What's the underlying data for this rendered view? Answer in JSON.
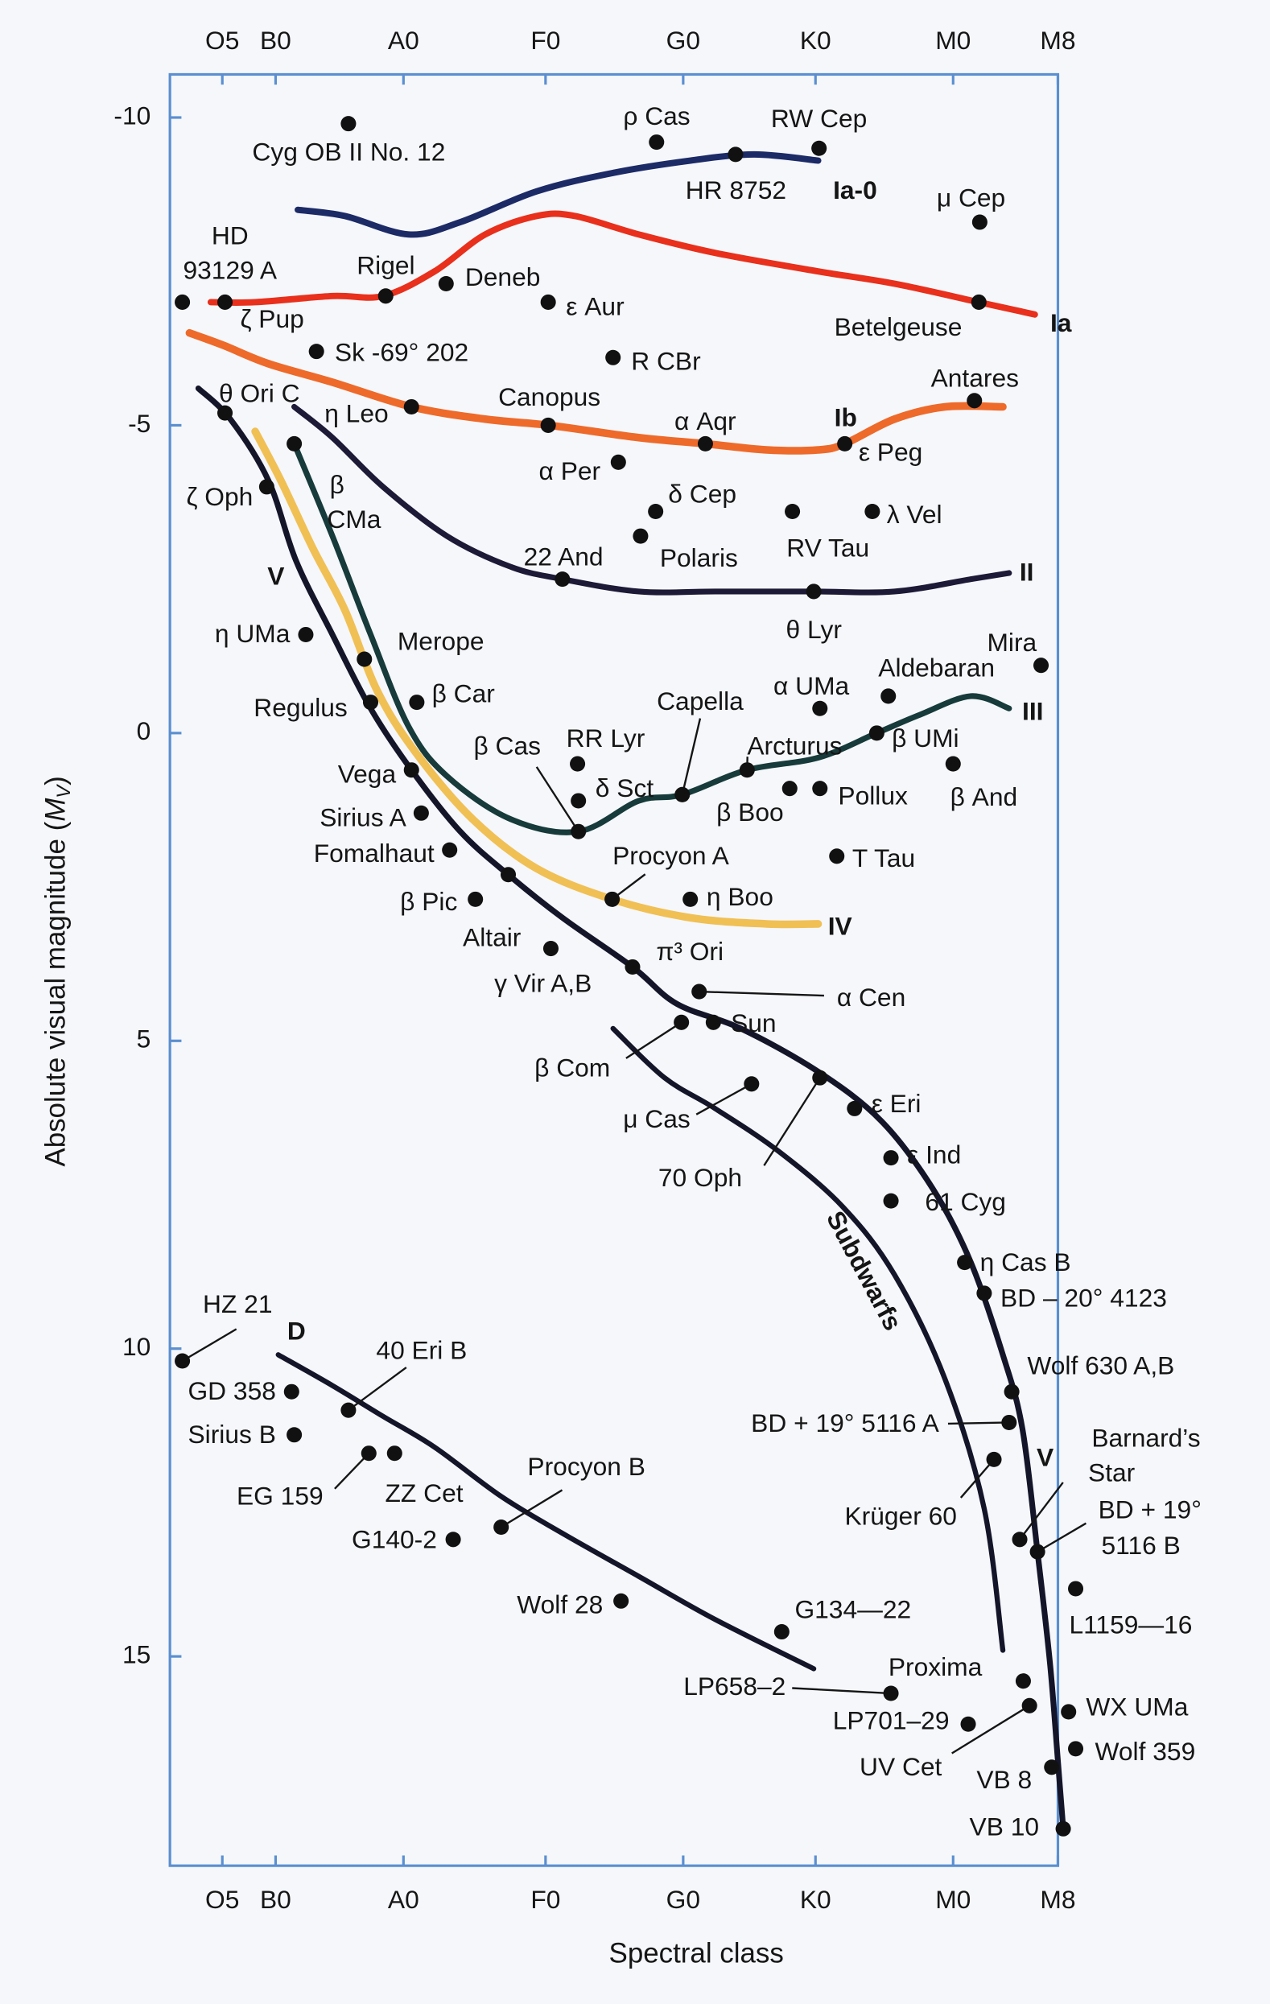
{
  "chart_data": {
    "type": "scatter",
    "xlabel": "Spectral class",
    "ylabel": [
      "Absolute visual magnitude (",
      "M",
      "V",
      ")"
    ],
    "xlim": [
      0,
      100
    ],
    "ylim": [
      -10.7,
      18.4
    ],
    "y_inverted": true,
    "xticks": [
      {
        "value": 5.9,
        "label": "O5"
      },
      {
        "value": 11.9,
        "label": "B0"
      },
      {
        "value": 26.3,
        "label": "A0"
      },
      {
        "value": 42.3,
        "label": "F0"
      },
      {
        "value": 57.8,
        "label": "G0"
      },
      {
        "value": 72.7,
        "label": "K0"
      },
      {
        "value": 88.2,
        "label": "M0"
      },
      {
        "value": 100,
        "label": "M8"
      }
    ],
    "yticks": [
      -10,
      -5,
      0,
      5,
      10,
      15
    ],
    "series": [
      {
        "name": "Ia-0",
        "color": "#1c2a66",
        "x": [
          14.4,
          19.7,
          26.9,
          32.7,
          41.3,
          49.9,
          58.6,
          65.8,
          73.0
        ],
        "values": [
          -8.5,
          -8.4,
          -8.1,
          -8.3,
          -8.8,
          -9.1,
          -9.3,
          -9.4,
          -9.3
        ]
      },
      {
        "name": "Ia",
        "color": "#e8301c",
        "x": [
          4.6,
          9.6,
          18.3,
          24.0,
          29.8,
          35.5,
          41.3,
          45.6,
          52.8,
          61.4,
          73.0,
          81.6,
          91.1,
          97.4
        ],
        "values": [
          -7.0,
          -7.0,
          -7.1,
          -7.1,
          -7.5,
          -8.1,
          -8.4,
          -8.4,
          -8.1,
          -7.8,
          -7.5,
          -7.3,
          -7.0,
          -6.8
        ]
      },
      {
        "name": "Ib",
        "color": "#ee6a2a",
        "x": [
          2.2,
          6.0,
          11.1,
          18.3,
          27.2,
          35.5,
          42.7,
          52.8,
          60.3,
          67.2,
          73.0,
          76.0,
          81.6,
          87.3,
          93.8
        ],
        "values": [
          -6.5,
          -6.3,
          -6.0,
          -5.7,
          -5.3,
          -5.1,
          -5.0,
          -4.8,
          -4.7,
          -4.6,
          -4.6,
          -4.7,
          -5.1,
          -5.3,
          -5.3
        ]
      },
      {
        "name": "II",
        "color": "#1c1a36",
        "x": [
          14.0,
          18.3,
          24.0,
          31.2,
          38.4,
          44.2,
          52.8,
          61.4,
          72.5,
          81.6,
          90.2,
          94.5
        ],
        "values": [
          -5.3,
          -4.8,
          -4.0,
          -3.2,
          -2.7,
          -2.5,
          -2.3,
          -2.3,
          -2.3,
          -2.3,
          -2.5,
          -2.6
        ]
      },
      {
        "name": "III",
        "color": "#173a3a",
        "x": [
          14.0,
          18.3,
          22.6,
          26.9,
          31.2,
          38.4,
          46.0,
          52.8,
          57.7,
          65.0,
          73.0,
          79.6,
          84.5,
          90.2,
          94.5
        ],
        "values": [
          -4.7,
          -3.2,
          -1.6,
          -0.1,
          0.7,
          1.4,
          1.6,
          1.1,
          1.0,
          0.6,
          0.4,
          0.0,
          -0.3,
          -0.6,
          -0.4
        ]
      },
      {
        "name": "IV",
        "color": "#f0c055",
        "x": [
          9.6,
          12.5,
          16.1,
          19.7,
          23.3,
          27.6,
          34.1,
          41.3,
          49.8,
          58.6,
          67.2,
          73.0
        ],
        "values": [
          -4.9,
          -4.1,
          -3.0,
          -2.0,
          -0.7,
          0.3,
          1.4,
          2.2,
          2.7,
          3.0,
          3.1,
          3.1
        ]
      },
      {
        "name": "V",
        "color": "#15152a",
        "x": [
          3.2,
          6.8,
          11.1,
          14.2,
          18.3,
          22.6,
          27.2,
          32.7,
          38.1,
          44.2,
          52.1,
          57.1,
          64.3,
          73.0,
          80.1,
          85.9,
          90.2,
          93.8,
          96.0,
          97.7,
          99.1,
          100,
          100.6
        ],
        "values": [
          -5.6,
          -5.1,
          -4.1,
          -2.8,
          -1.6,
          -0.4,
          0.6,
          1.6,
          2.3,
          3.0,
          3.8,
          4.4,
          4.8,
          5.5,
          6.3,
          7.4,
          8.6,
          10.1,
          11.3,
          13.3,
          15.1,
          16.7,
          17.8
        ]
      },
      {
        "name": "Subdwarfs",
        "color": "#15152a",
        "x": [
          49.9,
          55.7,
          61.4,
          68.6,
          75.8,
          81.6,
          87.3,
          91.7,
          93.8
        ],
        "values": [
          4.8,
          5.6,
          6.1,
          6.8,
          7.7,
          8.8,
          10.5,
          12.6,
          14.9
        ]
      },
      {
        "name": "D",
        "color": "#15152a",
        "x": [
          12.2,
          18.3,
          24.0,
          29.8,
          37.3,
          44.2,
          52.8,
          61.4,
          72.5
        ],
        "values": [
          10.1,
          10.6,
          11.1,
          11.6,
          12.4,
          13.0,
          13.7,
          14.4,
          15.2
        ]
      }
    ],
    "stars": [
      {
        "name": "Cyg OB II No. 12",
        "x": 20.1,
        "y": -9.9
      },
      {
        "name": "ρ Cas",
        "x": 54.8,
        "y": -9.6
      },
      {
        "name": "RW Cep",
        "x": 73.1,
        "y": -9.5
      },
      {
        "name": "HR 8752",
        "x": 63.7,
        "y": -9.4
      },
      {
        "name": "μ Cep",
        "x": 91.2,
        "y": -8.3
      },
      {
        "name": "HD 93129 A",
        "x": 1.4,
        "y": -7.0
      },
      {
        "name": "ζ Pup",
        "x": 6.2,
        "y": -7.0
      },
      {
        "name": "Rigel",
        "x": 24.3,
        "y": -7.1
      },
      {
        "name": "Deneb",
        "x": 31.1,
        "y": -7.3
      },
      {
        "name": "ε Aur",
        "x": 42.6,
        "y": -7.0
      },
      {
        "name": "Betelgeuse",
        "x": 91.1,
        "y": -7.0
      },
      {
        "name": "Sk -69° 202",
        "x": 16.5,
        "y": -6.2
      },
      {
        "name": "R CBr",
        "x": 49.9,
        "y": -6.1
      },
      {
        "name": "θ Ori C",
        "x": 6.2,
        "y": -5.2
      },
      {
        "name": "η Leo",
        "x": 27.2,
        "y": -5.3
      },
      {
        "name": "Canopus",
        "x": 42.6,
        "y": -5.0
      },
      {
        "name": "α Aqr",
        "x": 60.3,
        "y": -4.7
      },
      {
        "name": "Antares",
        "x": 90.6,
        "y": -5.4
      },
      {
        "name": "ε Peg",
        "x": 76.0,
        "y": -4.7
      },
      {
        "name": "ζ Oph",
        "x": 10.9,
        "y": -4.0
      },
      {
        "name": "β CMa",
        "x": 14.0,
        "y": -4.7
      },
      {
        "name": "α Per",
        "x": 50.5,
        "y": -4.4
      },
      {
        "name": "δ Cep",
        "x": 54.7,
        "y": -3.6
      },
      {
        "name": "Polaris",
        "x": 53.0,
        "y": -3.2
      },
      {
        "name": "RV Tau",
        "x": 70.1,
        "y": -3.6
      },
      {
        "name": "λ Vel",
        "x": 79.1,
        "y": -3.6
      },
      {
        "name": "22 And",
        "x": 44.2,
        "y": -2.5
      },
      {
        "name": "θ Lyr",
        "x": 72.5,
        "y": -2.3
      },
      {
        "name": "η UMa",
        "x": 15.3,
        "y": -1.6
      },
      {
        "name": "Merope",
        "x": 21.9,
        "y": -1.2
      },
      {
        "name": "Mira",
        "x": 98.1,
        "y": -1.1
      },
      {
        "name": "Aldebaran",
        "x": 80.9,
        "y": -0.6
      },
      {
        "name": "α UMa",
        "x": 73.2,
        "y": -0.4
      },
      {
        "name": "β Car",
        "x": 27.8,
        "y": -0.5
      },
      {
        "name": "Regulus",
        "x": 22.6,
        "y": -0.5
      },
      {
        "name": "Capella",
        "x": 57.7,
        "y": 1.0
      },
      {
        "name": "Arcturus",
        "x": 65.0,
        "y": 0.6
      },
      {
        "name": "β UMi",
        "x": 79.6,
        "y": 0.0
      },
      {
        "name": "β Cas",
        "x": 46.0,
        "y": 1.6
      },
      {
        "name": "RR Lyr",
        "x": 45.9,
        "y": 0.5
      },
      {
        "name": "δ Sct",
        "x": 46.0,
        "y": 1.1
      },
      {
        "name": "β Boo",
        "x": 69.8,
        "y": 0.9
      },
      {
        "name": "Pollux",
        "x": 73.2,
        "y": 0.9
      },
      {
        "name": "β And",
        "x": 88.2,
        "y": 0.5
      },
      {
        "name": "Vega",
        "x": 27.2,
        "y": 0.6
      },
      {
        "name": "Sirius A",
        "x": 28.3,
        "y": 1.3
      },
      {
        "name": "Fomalhaut",
        "x": 31.5,
        "y": 1.9
      },
      {
        "name": "T Tau",
        "x": 75.1,
        "y": 2.0
      },
      {
        "name": "Procyon A",
        "x": 49.8,
        "y": 2.7
      },
      {
        "name": "η Boo",
        "x": 58.6,
        "y": 2.7
      },
      {
        "name": "β Pic",
        "x": 34.4,
        "y": 2.7
      },
      {
        "name": "Altair",
        "x": 38.1,
        "y": 2.3
      },
      {
        "name": "γ Vir A,B",
        "x": 42.9,
        "y": 3.5
      },
      {
        "name": "π³ Ori",
        "x": 52.1,
        "y": 3.8
      },
      {
        "name": "α Cen",
        "x": 59.6,
        "y": 4.2
      },
      {
        "name": "Sun",
        "x": 61.2,
        "y": 4.7
      },
      {
        "name": "β Com",
        "x": 57.6,
        "y": 4.7
      },
      {
        "name": "μ Cas",
        "x": 65.5,
        "y": 5.7
      },
      {
        "name": "70 Oph",
        "x": 73.2,
        "y": 5.6
      },
      {
        "name": "ε Eri",
        "x": 77.1,
        "y": 6.1
      },
      {
        "name": "ε Ind",
        "x": 81.2,
        "y": 6.9
      },
      {
        "name": "61 Cyg",
        "x": 81.2,
        "y": 7.6
      },
      {
        "name": "η Cas B",
        "x": 89.5,
        "y": 8.6
      },
      {
        "name": "BD – 20° 4123",
        "x": 91.7,
        "y": 9.1
      },
      {
        "name": "Wolf 630 A,B",
        "x": 94.8,
        "y": 10.7
      },
      {
        "name": "BD + 19° 5116 A",
        "x": 94.5,
        "y": 11.2
      },
      {
        "name": "Krüger 60",
        "x": 92.8,
        "y": 11.8
      },
      {
        "name": "Barnard’s Star",
        "x": 95.7,
        "y": 13.1
      },
      {
        "name": "BD + 19° 5116 B",
        "x": 97.7,
        "y": 13.3
      },
      {
        "name": "L1159—16",
        "x": 102.0,
        "y": 13.9
      },
      {
        "name": "G134—22",
        "x": 68.9,
        "y": 14.6
      },
      {
        "name": "Wolf 28",
        "x": 50.8,
        "y": 14.1
      },
      {
        "name": "Proxima",
        "x": 96.1,
        "y": 15.4
      },
      {
        "name": "LP658–2",
        "x": 81.2,
        "y": 15.6
      },
      {
        "name": "LP701–29",
        "x": 89.9,
        "y": 16.1
      },
      {
        "name": "WX UMa",
        "x": 101.2,
        "y": 15.9
      },
      {
        "name": "UV Cet",
        "x": 96.8,
        "y": 15.8
      },
      {
        "name": "VB 8",
        "x": 99.3,
        "y": 16.8
      },
      {
        "name": "Wolf 359",
        "x": 102.0,
        "y": 16.5
      },
      {
        "name": "VB 10",
        "x": 100.6,
        "y": 17.8
      },
      {
        "name": "HZ 21",
        "x": 1.4,
        "y": 10.2
      },
      {
        "name": "GD 358",
        "x": 13.7,
        "y": 10.7
      },
      {
        "name": "Sirius B",
        "x": 14.0,
        "y": 11.4
      },
      {
        "name": "40 Eri B",
        "x": 20.1,
        "y": 11.0
      },
      {
        "name": "EG 159",
        "x": 22.4,
        "y": 11.7
      },
      {
        "name": "ZZ Cet",
        "x": 25.3,
        "y": 11.7
      },
      {
        "name": "G140-2",
        "x": 31.9,
        "y": 13.1
      },
      {
        "name": "Procyon B",
        "x": 37.3,
        "y": 12.9
      }
    ]
  }
}
